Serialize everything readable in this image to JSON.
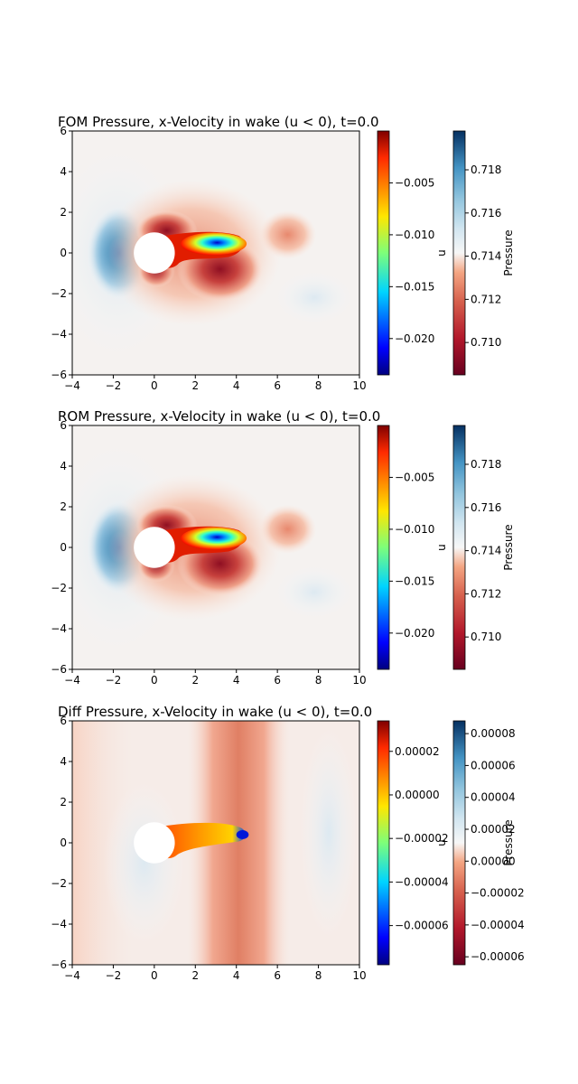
{
  "chart_data": [
    {
      "type": "heatmap",
      "title": "FOM Pressure, x-Velocity in wake (u < 0), t=0.0",
      "xlim": [
        -4,
        10
      ],
      "ylim": [
        -6,
        6
      ],
      "xticks": [
        "−4",
        "−2",
        "0",
        "2",
        "4",
        "6",
        "8",
        "10"
      ],
      "yticks": [
        "−6",
        "−4",
        "−2",
        "0",
        "2",
        "4",
        "6"
      ],
      "colorbars": [
        {
          "label": "u",
          "colormap": "jet",
          "range": [
            -0.0235,
            0.0
          ],
          "ticks": [
            "−0.005",
            "−0.010",
            "−0.015",
            "−0.020"
          ],
          "tick_values": [
            -0.005,
            -0.01,
            -0.015,
            -0.02
          ]
        },
        {
          "label": "Pressure",
          "colormap": "RdBu",
          "range": [
            0.7085,
            0.7198
          ],
          "ticks": [
            "0.718",
            "0.716",
            "0.714",
            "0.712",
            "0.710"
          ],
          "tick_values": [
            0.718,
            0.716,
            0.714,
            0.712,
            0.71
          ]
        }
      ]
    },
    {
      "type": "heatmap",
      "title": "ROM Pressure, x-Velocity in wake (u < 0), t=0.0",
      "xlim": [
        -4,
        10
      ],
      "ylim": [
        -6,
        6
      ],
      "xticks": [
        "−4",
        "−2",
        "0",
        "2",
        "4",
        "6",
        "8",
        "10"
      ],
      "yticks": [
        "−6",
        "−4",
        "−2",
        "0",
        "2",
        "4",
        "6"
      ],
      "colorbars": [
        {
          "label": "u",
          "colormap": "jet",
          "range": [
            -0.0235,
            0.0
          ],
          "ticks": [
            "−0.005",
            "−0.010",
            "−0.015",
            "−0.020"
          ],
          "tick_values": [
            -0.005,
            -0.01,
            -0.015,
            -0.02
          ]
        },
        {
          "label": "Pressure",
          "colormap": "RdBu",
          "range": [
            0.7085,
            0.7198
          ],
          "ticks": [
            "0.718",
            "0.716",
            "0.714",
            "0.712",
            "0.710"
          ],
          "tick_values": [
            0.718,
            0.716,
            0.714,
            0.712,
            0.71
          ]
        }
      ]
    },
    {
      "type": "heatmap",
      "title": "Diff Pressure, x-Velocity in wake (u < 0), t=0.0",
      "xlim": [
        -4,
        10
      ],
      "ylim": [
        -6,
        6
      ],
      "xticks": [
        "−4",
        "−2",
        "0",
        "2",
        "4",
        "6",
        "8",
        "10"
      ],
      "yticks": [
        "−6",
        "−4",
        "−2",
        "0",
        "2",
        "4",
        "6"
      ],
      "colorbars": [
        {
          "label": "u",
          "colormap": "jet",
          "range": [
            -7.8e-05,
            3.4e-05
          ],
          "ticks": [
            "0.00002",
            "0.00000",
            "−0.00002",
            "−0.00004",
            "−0.00006"
          ],
          "tick_values": [
            2e-05,
            0.0,
            -2e-05,
            -4e-05,
            -6e-05
          ]
        },
        {
          "label": "Pressure",
          "colormap": "RdBu",
          "range": [
            -6.5e-05,
            8.8e-05
          ],
          "ticks": [
            "0.00008",
            "0.00006",
            "0.00004",
            "0.00002",
            "0.00000",
            "−0.00002",
            "−0.00004",
            "−0.00006"
          ],
          "tick_values": [
            8e-05,
            6e-05,
            4e-05,
            2e-05,
            0.0,
            -2e-05,
            -4e-05,
            -6e-05
          ]
        }
      ]
    }
  ]
}
